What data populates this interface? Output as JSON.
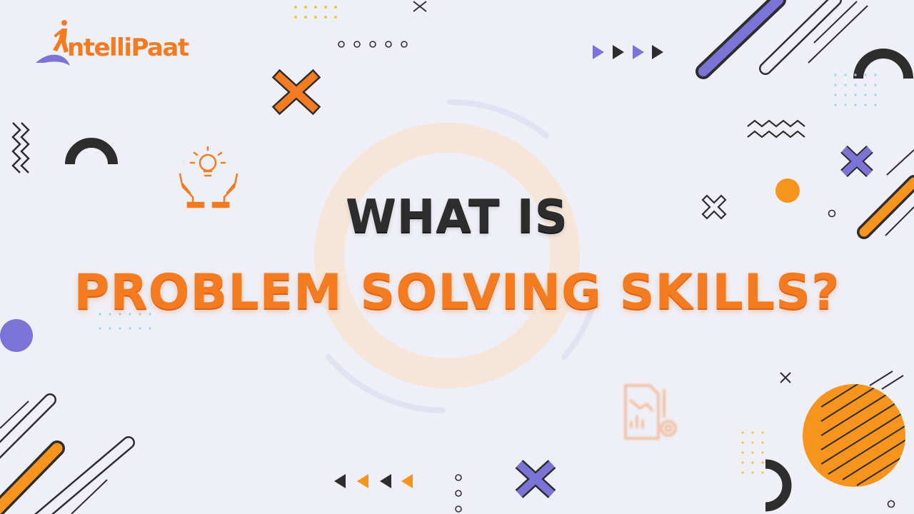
{
  "brand": {
    "name": "ntelliPaat",
    "colors": {
      "orange": "#f47b20",
      "purple": "#7b74d6",
      "dark": "#2d2d2d",
      "background": "#efeff7"
    }
  },
  "title": {
    "line1": "WHAT IS",
    "line2": "PROBLEM SOLVING SKILLS?"
  },
  "icons": [
    "lightbulb-hands-icon",
    "analytics-gear-icon",
    "close-icon"
  ]
}
